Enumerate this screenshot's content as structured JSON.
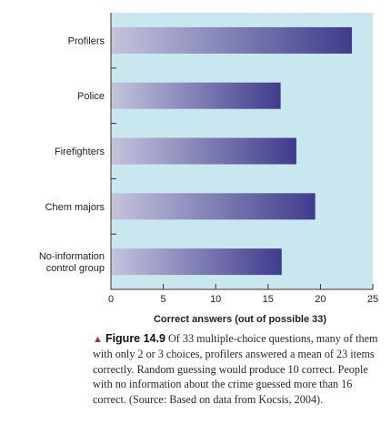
{
  "chart_data": {
    "type": "bar",
    "orientation": "horizontal",
    "categories": [
      [
        "Profilers"
      ],
      [
        "Police"
      ],
      [
        "Firefighters"
      ],
      [
        "Chem majors"
      ],
      [
        "No-information",
        "control group"
      ]
    ],
    "values": [
      23,
      16.2,
      17.7,
      19.5,
      16.3
    ],
    "xlabel": "Correct answers (out of possible 33)",
    "xlim": [
      0,
      25
    ],
    "xticks": [
      "0",
      "5",
      "10",
      "15",
      "20",
      "25"
    ],
    "grid": false,
    "colors": {
      "plot_background": "#c9e7ee",
      "bar_light": "#c4c4de",
      "bar_dark": "#3f3c8c",
      "axis": "#333333"
    }
  },
  "caption": {
    "marker": "▲",
    "label": "Figure 14.9",
    "text": "Of 33 multiple-choice questions, many of them with only 2 or 3 choices, profilers answered a mean of 23 items correctly. Random guessing would produce 10 correct. People with no information about the crime guessed more than 16 correct. (Source: Based on data from Kocsis, 2004)."
  }
}
